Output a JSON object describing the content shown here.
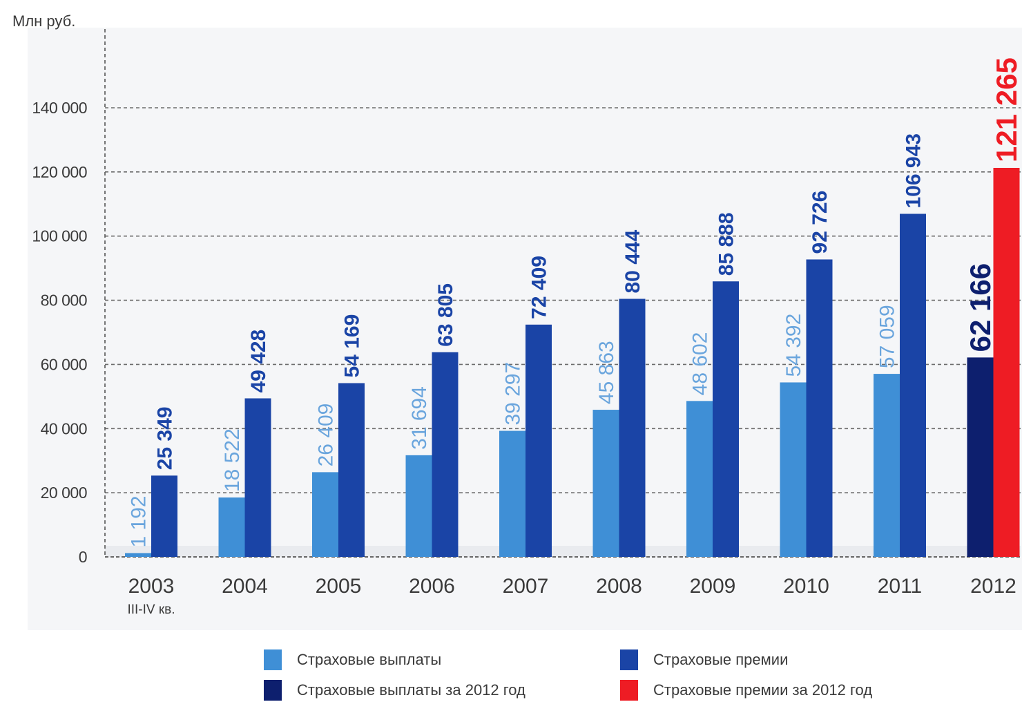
{
  "chart_data": {
    "type": "bar",
    "ylabel": "Млн руб.",
    "ylim": [
      0,
      160000
    ],
    "yticks": [
      0,
      20000,
      40000,
      60000,
      80000,
      100000,
      120000,
      140000
    ],
    "ytick_labels": [
      "0",
      "20 000",
      "40 000",
      "60 000",
      "80 000",
      "100 000",
      "120 000",
      "140 000"
    ],
    "grid": true,
    "categories": [
      "2003",
      "2004",
      "2005",
      "2006",
      "2007",
      "2008",
      "2009",
      "2010",
      "2011",
      "2012"
    ],
    "category_sublabels": [
      "III-IV кв.",
      "",
      "",
      "",
      "",
      "",
      "",
      "",
      "",
      ""
    ],
    "series": [
      {
        "name": "Страховые выплаты",
        "color": "#3f8fd6",
        "values": [
          1192,
          18522,
          26409,
          31694,
          39297,
          45863,
          48602,
          54392,
          57059,
          null
        ],
        "labels": [
          "1 192",
          "18 522",
          "26 409",
          "31 694",
          "39 297",
          "45 863",
          "48 602",
          "54 392",
          "57 059",
          ""
        ]
      },
      {
        "name": "Страховые премии",
        "color": "#1a44a6",
        "values": [
          25349,
          49428,
          54169,
          63805,
          72409,
          80444,
          85888,
          92726,
          106943,
          null
        ],
        "labels": [
          "25 349",
          "49 428",
          "54 169",
          "63 805",
          "72 409",
          "80 444",
          "85 888",
          "92 726",
          "106 943",
          ""
        ]
      },
      {
        "name": "Страховые выплаты за 2012 год",
        "color": "#0d1f6e",
        "values": [
          null,
          null,
          null,
          null,
          null,
          null,
          null,
          null,
          null,
          62166
        ],
        "labels": [
          "",
          "",
          "",
          "",
          "",
          "",
          "",
          "",
          "",
          "62 166"
        ]
      },
      {
        "name": "Страховые премии за 2012 год",
        "color": "#ee1c24",
        "values": [
          null,
          null,
          null,
          null,
          null,
          null,
          null,
          null,
          null,
          121265
        ],
        "labels": [
          "",
          "",
          "",
          "",
          "",
          "",
          "",
          "",
          "",
          "121 265"
        ]
      }
    ],
    "legend_position": "bottom"
  },
  "legend": {
    "items": [
      {
        "label": "Страховые выплаты",
        "color": "#3f8fd6"
      },
      {
        "label": "Страховые премии",
        "color": "#1a44a6"
      },
      {
        "label": "Страховые выплаты за 2012 год",
        "color": "#0d1f6e"
      },
      {
        "label": "Страховые премии за 2012 год",
        "color": "#ee1c24"
      }
    ]
  }
}
